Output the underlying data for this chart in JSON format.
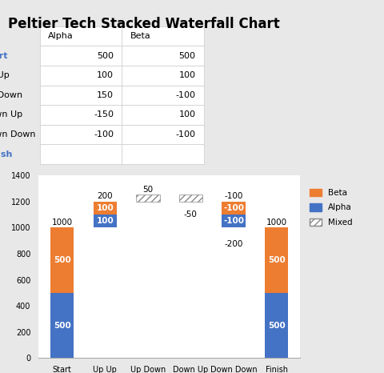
{
  "title": "Peltier Tech Stacked Waterfall Chart",
  "table_rows": [
    "Start",
    "Up Up",
    "Up Down",
    "Down Up",
    "Down Down",
    "Finish"
  ],
  "table_cols": [
    "Alpha",
    "Beta"
  ],
  "table_values": [
    [
      500,
      500
    ],
    [
      100,
      100
    ],
    [
      150,
      -100
    ],
    [
      -150,
      100
    ],
    [
      -100,
      -100
    ],
    [
      null,
      null
    ]
  ],
  "categories": [
    "Start",
    "Up Up",
    "Up Down",
    "Down Up",
    "Down Down",
    "Finish"
  ],
  "color_blue": "#4472C4",
  "color_orange": "#ED7D31",
  "bg_color": "#e8e8e8",
  "chart_bg": "#ffffff",
  "ylim": [
    0,
    1400
  ],
  "yticks": [
    0,
    200,
    400,
    600,
    800,
    1000,
    1200,
    1400
  ],
  "bar_width": 0.55,
  "title_fontsize": 12,
  "annot_fontsize": 7.5,
  "tick_fontsize": 7
}
